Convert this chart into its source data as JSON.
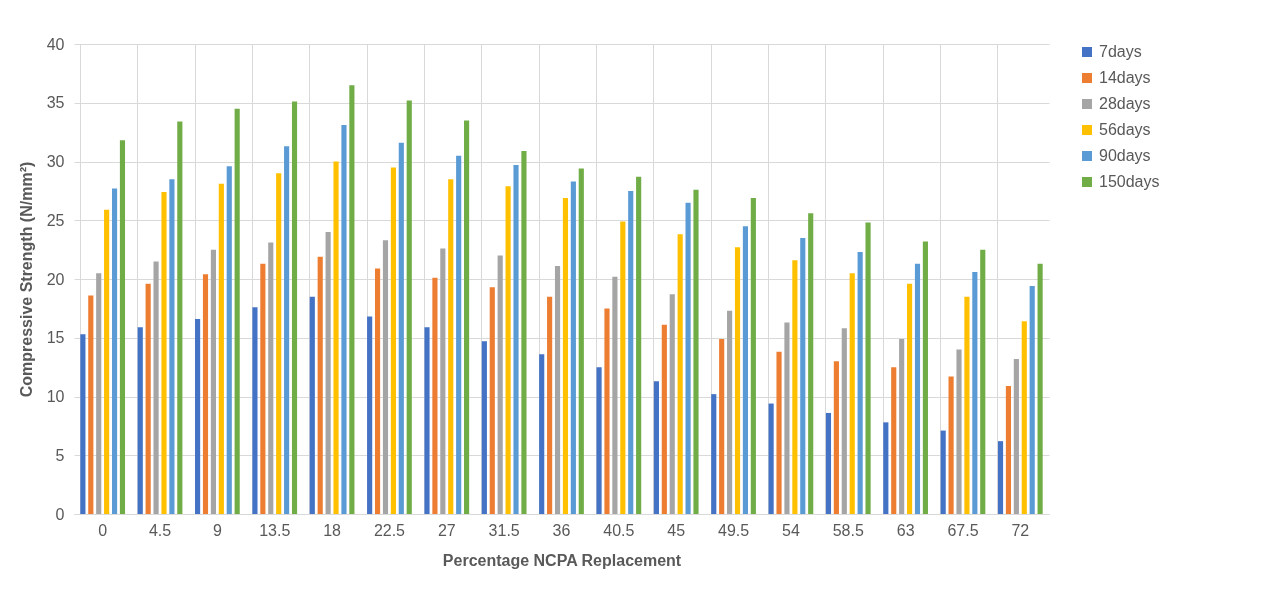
{
  "chart_data": {
    "type": "bar",
    "xlabel": "Percentage NCPA Replacement",
    "ylabel": "Compressive Strength (N/mm²)",
    "categories": [
      "0",
      "4.5",
      "9",
      "13.5",
      "18",
      "22.5",
      "27",
      "31.5",
      "36",
      "40.5",
      "45",
      "49.5",
      "54",
      "58.5",
      "63",
      "67.5",
      "72"
    ],
    "series": [
      {
        "name": "7days",
        "color": "#4472c4",
        "values": [
          15.3,
          15.9,
          16.6,
          17.6,
          18.5,
          16.8,
          15.9,
          14.7,
          13.6,
          12.5,
          11.3,
          10.2,
          9.4,
          8.6,
          7.8,
          7.1,
          6.2
        ]
      },
      {
        "name": "14days",
        "color": "#ed7d31",
        "values": [
          18.6,
          19.6,
          20.4,
          21.3,
          21.9,
          20.9,
          20.1,
          19.3,
          18.5,
          17.5,
          16.1,
          14.9,
          13.8,
          13.0,
          12.5,
          11.7,
          10.9
        ]
      },
      {
        "name": "28days",
        "color": "#a5a5a5",
        "values": [
          20.5,
          21.5,
          22.5,
          23.1,
          24.0,
          23.3,
          22.6,
          22.0,
          21.1,
          20.2,
          18.7,
          17.3,
          16.3,
          15.8,
          14.9,
          14.0,
          13.2
        ]
      },
      {
        "name": "56days",
        "color": "#ffc000",
        "values": [
          25.9,
          27.4,
          28.1,
          29.0,
          30.0,
          29.5,
          28.5,
          27.9,
          26.9,
          24.9,
          23.8,
          22.7,
          21.6,
          20.5,
          19.6,
          18.5,
          16.4
        ]
      },
      {
        "name": "90days",
        "color": "#5b9bd5",
        "values": [
          27.7,
          28.5,
          29.6,
          31.3,
          33.1,
          31.6,
          30.5,
          29.7,
          28.3,
          27.5,
          26.5,
          24.5,
          23.5,
          22.3,
          21.3,
          20.6,
          19.4
        ]
      },
      {
        "name": "150days",
        "color": "#70ad47",
        "values": [
          31.8,
          33.4,
          34.5,
          35.1,
          36.5,
          35.2,
          33.5,
          30.9,
          29.4,
          28.7,
          27.6,
          26.9,
          25.6,
          24.8,
          23.2,
          22.5,
          21.3
        ]
      }
    ],
    "ylim": [
      0,
      40
    ],
    "yticks": [
      0,
      5,
      10,
      15,
      20,
      25,
      30,
      35,
      40
    ],
    "grid": true,
    "legend": "right"
  }
}
